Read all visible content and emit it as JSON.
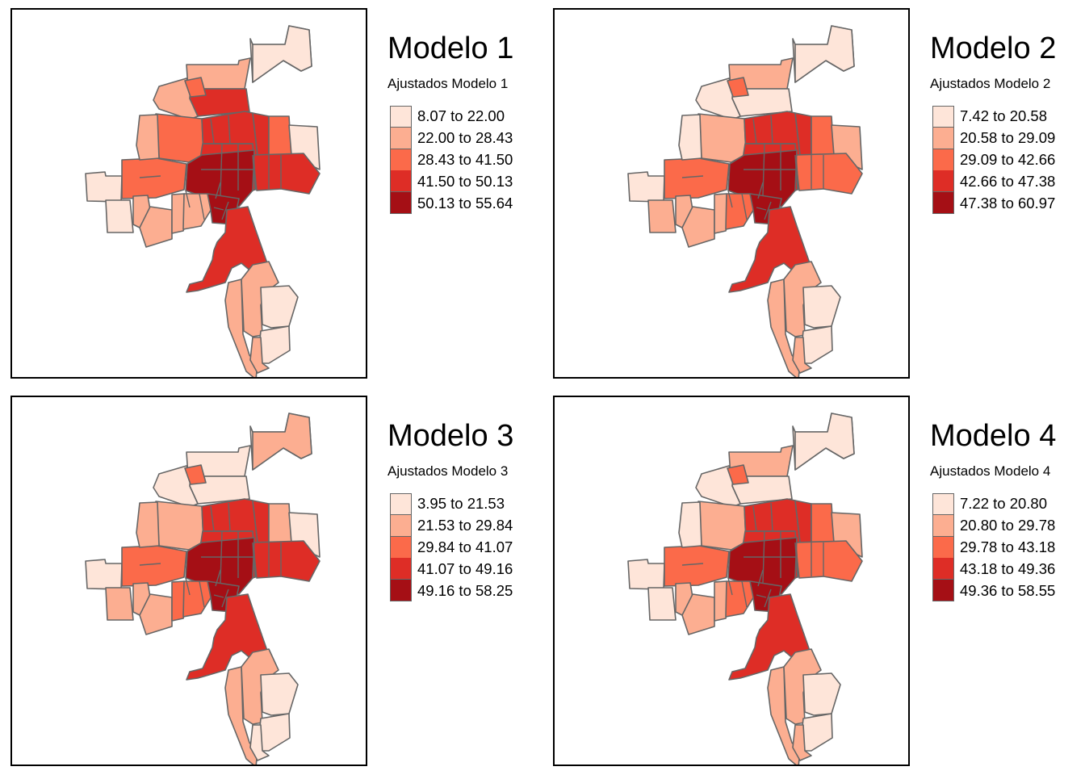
{
  "colors": [
    "#fee5d9",
    "#fcae91",
    "#fb6a4a",
    "#de2d26",
    "#a50f15"
  ],
  "border_color": "#666666",
  "panels": [
    {
      "title": "Modelo 1",
      "subtitle": "Ajustados Modelo 1",
      "legend": [
        "8.07 to 22.00",
        "22.00 to 28.43",
        "28.43 to 41.50",
        "41.50 to 50.13",
        "50.13 to 55.64"
      ],
      "regions": {
        "nf1": 0,
        "nf2": 0,
        "nf3": 1,
        "nb": 3,
        "nl": 1,
        "nlb": 2,
        "w1": 0,
        "w2": 0,
        "wc": 2,
        "nw": 2,
        "nm": 1,
        "nc1": 3,
        "nc2": 3,
        "ne1": 2,
        "ne2": 0,
        "ee": 3,
        "ce": 3,
        "c": 4,
        "sw1": 1,
        "sw2": 1,
        "sw3": 1,
        "cl": 1,
        "cr": 4,
        "s": 3,
        "st1": 1,
        "st2": 1,
        "st3": 0,
        "st4": 0,
        "st5": 1
      }
    },
    {
      "title": "Modelo 2",
      "subtitle": "Ajustados Modelo 2",
      "legend": [
        "7.42 to 20.58",
        "20.58 to 29.09",
        "29.09 to 42.66",
        "42.66 to 47.38",
        "47.38 to 60.97"
      ],
      "regions": {
        "nf1": 0,
        "nf2": 0,
        "nf3": 1,
        "nb": 0,
        "nl": 0,
        "nlb": 2,
        "w1": 0,
        "w2": 1,
        "wc": 2,
        "nw": 1,
        "nm": 0,
        "nc1": 3,
        "nc2": 3,
        "ne1": 2,
        "ne2": 1,
        "ee": 2,
        "ce": 3,
        "c": 4,
        "sw1": 1,
        "sw2": 1,
        "sw3": 1,
        "cl": 2,
        "cr": 4,
        "s": 3,
        "st1": 1,
        "st2": 1,
        "st3": 0,
        "st4": 0,
        "st5": 1
      }
    },
    {
      "title": "Modelo 3",
      "subtitle": "Ajustados Modelo 3",
      "legend": [
        "3.95 to 21.53",
        "21.53 to 29.84",
        "29.84 to 41.07",
        "41.07 to 49.16",
        "49.16 to 58.25"
      ],
      "regions": {
        "nf1": 0,
        "nf2": 1,
        "nf3": 0,
        "nb": 0,
        "nl": 0,
        "nlb": 2,
        "w1": 0,
        "w2": 1,
        "wc": 2,
        "nw": 1,
        "nm": 1,
        "nc1": 3,
        "nc2": 3,
        "ne1": 1,
        "ne2": 0,
        "ee": 3,
        "ce": 3,
        "c": 4,
        "sw1": 1,
        "sw2": 1,
        "sw3": 2,
        "cl": 2,
        "cr": 4,
        "s": 3,
        "st1": 1,
        "st2": 1,
        "st3": 0,
        "st4": 0,
        "st5": 0
      }
    },
    {
      "title": "Modelo 4",
      "subtitle": "Ajustados Modelo 4",
      "legend": [
        "7.22 to 20.80",
        "20.80 to 29.78",
        "29.78 to 43.18",
        "43.18 to 49.36",
        "49.36 to 58.55"
      ],
      "regions": {
        "nf1": 0,
        "nf2": 0,
        "nf3": 1,
        "nb": 0,
        "nl": 0,
        "nlb": 2,
        "w1": 0,
        "w2": 0,
        "wc": 2,
        "nw": 1,
        "nm": 0,
        "nc1": 3,
        "nc2": 3,
        "ne1": 2,
        "ne2": 1,
        "ee": 2,
        "ce": 3,
        "c": 4,
        "sw1": 1,
        "sw2": 1,
        "sw3": 1,
        "cl": 2,
        "cr": 4,
        "s": 3,
        "st1": 1,
        "st2": 1,
        "st3": 0,
        "st4": 0,
        "st5": 1
      }
    }
  ]
}
